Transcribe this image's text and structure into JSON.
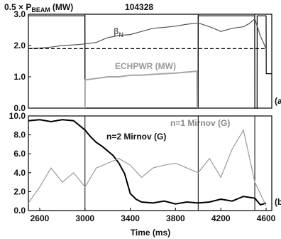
{
  "chart_data": [
    {
      "type": "line",
      "panel": "a",
      "panel_label": "(a",
      "ylabel": "0.5 × P",
      "ylabel_sub": "BEAM",
      "ylabel_unit": "(MW)",
      "shot_number": "104328",
      "xlim": [
        2500,
        4650
      ],
      "ylim": [
        0,
        3.0
      ],
      "yticks": [
        "0.0",
        "1.0",
        "2.0",
        "3.0"
      ],
      "annotations": {
        "betaN": "β",
        "betaN_sub": "N",
        "echpwr": "ECHPWR (MW)"
      },
      "series": [
        {
          "key": "beam",
          "color": "#000000",
          "x": [
            2500,
            2999,
            3000,
            3999,
            4000,
            4499,
            4500,
            4520,
            4521,
            4600,
            4601,
            4650
          ],
          "y": [
            2.95,
            2.95,
            0.0,
            0.0,
            2.95,
            2.95,
            0.0,
            0.0,
            2.95,
            2.95,
            1.1,
            1.1
          ]
        },
        {
          "key": "betaN",
          "name": "β_N",
          "color": "#555555",
          "x": [
            2500,
            2600,
            2700,
            2800,
            2900,
            3000,
            3100,
            3200,
            3300,
            3400,
            3500,
            3600,
            3700,
            3800,
            3900,
            4000,
            4100,
            4200,
            4300,
            4400,
            4450,
            4500,
            4550,
            4600
          ],
          "y": [
            1.9,
            1.92,
            1.95,
            2.0,
            2.02,
            2.05,
            2.1,
            2.25,
            2.32,
            2.35,
            2.45,
            2.55,
            2.58,
            2.62,
            2.68,
            2.72,
            2.6,
            2.45,
            2.55,
            2.6,
            2.7,
            2.85,
            2.3,
            1.9
          ]
        },
        {
          "key": "betaN_ref",
          "color": "#000000",
          "dashed": true,
          "x": [
            2500,
            4600
          ],
          "y": [
            1.9,
            1.9
          ]
        },
        {
          "key": "echpwr",
          "name": "ECHPWR (MW)",
          "color": "#a6a6a6",
          "x": [
            3000,
            3001,
            3100,
            3200,
            3300,
            3400,
            3500,
            3600,
            3700,
            3800,
            3900,
            3990,
            3991
          ],
          "y": [
            0.0,
            0.9,
            0.95,
            1.0,
            1.0,
            1.05,
            1.05,
            1.08,
            1.1,
            1.12,
            1.15,
            1.18,
            0.0
          ]
        }
      ]
    },
    {
      "type": "line",
      "panel": "b",
      "panel_label": "(b",
      "xlabel": "Time (ms)",
      "xlim": [
        2500,
        4650
      ],
      "ylim": [
        0,
        10.0
      ],
      "xticks": [
        "2600",
        "3000",
        "3400",
        "3800",
        "4200",
        "4600"
      ],
      "yticks": [
        "0.0",
        "2.0",
        "4.0",
        "6.0",
        "8.0",
        "10.0"
      ],
      "annotations": {
        "n2_label": "n=2 Mirnov (G)",
        "n1_label": "n=1 Mirnov (G)"
      },
      "series": [
        {
          "key": "n2",
          "name": "n=2 Mirnov (G)",
          "color": "#000000",
          "x": [
            2500,
            2600,
            2700,
            2800,
            2900,
            3000,
            3050,
            3100,
            3150,
            3200,
            3250,
            3300,
            3350,
            3400,
            3450,
            3500,
            3600,
            3700,
            3800,
            3900,
            4000,
            4100,
            4200,
            4300,
            4400,
            4500,
            4550,
            4600
          ],
          "y": [
            9.5,
            9.6,
            9.4,
            9.6,
            9.5,
            8.5,
            7.8,
            7.2,
            6.8,
            6.3,
            5.8,
            5.0,
            3.9,
            1.8,
            1.2,
            0.9,
            0.8,
            1.0,
            0.7,
            0.9,
            0.8,
            0.9,
            1.2,
            1.0,
            1.5,
            1.3,
            0.6,
            0.8
          ]
        },
        {
          "key": "n1",
          "name": "n=1 Mirnov (G)",
          "color": "#9a9a9a",
          "x": [
            2500,
            2600,
            2700,
            2800,
            2900,
            3000,
            3100,
            3200,
            3300,
            3400,
            3500,
            3600,
            3700,
            3800,
            3900,
            4000,
            4100,
            4200,
            4300,
            4400,
            4500,
            4600
          ],
          "y": [
            0.8,
            2.5,
            4.5,
            3.0,
            4.0,
            2.5,
            4.5,
            5.0,
            5.5,
            4.8,
            3.5,
            4.5,
            4.8,
            5.0,
            4.5,
            4.0,
            5.5,
            3.5,
            6.5,
            8.5,
            3.0,
            0.5
          ]
        }
      ]
    }
  ]
}
